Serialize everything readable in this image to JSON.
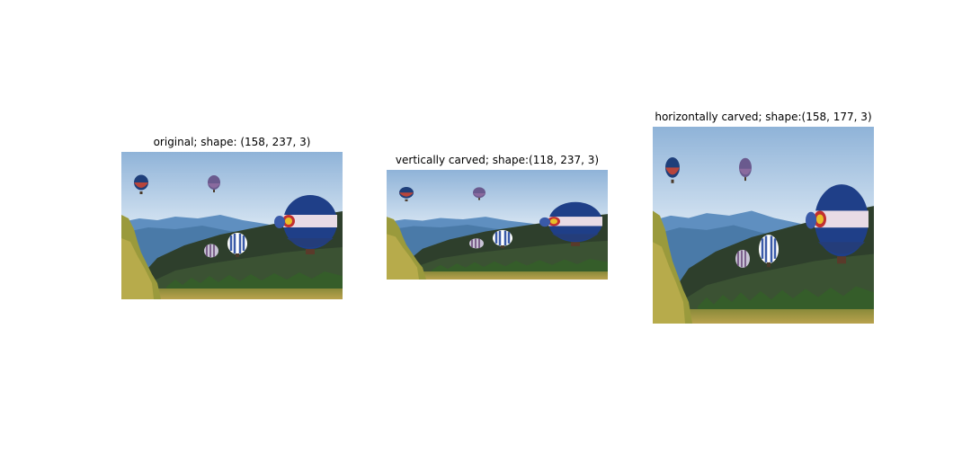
{
  "figure": {
    "panels": [
      {
        "title": "original; shape: (158, 237, 3)",
        "image": "hot-air-balloons-over-mountains"
      },
      {
        "title": "vertically carved; shape:(118, 237, 3)",
        "image": "hot-air-balloons-over-mountains"
      },
      {
        "title": "horizontally carved; shape:(158, 177, 3)",
        "image": "hot-air-balloons-over-mountains"
      }
    ]
  }
}
